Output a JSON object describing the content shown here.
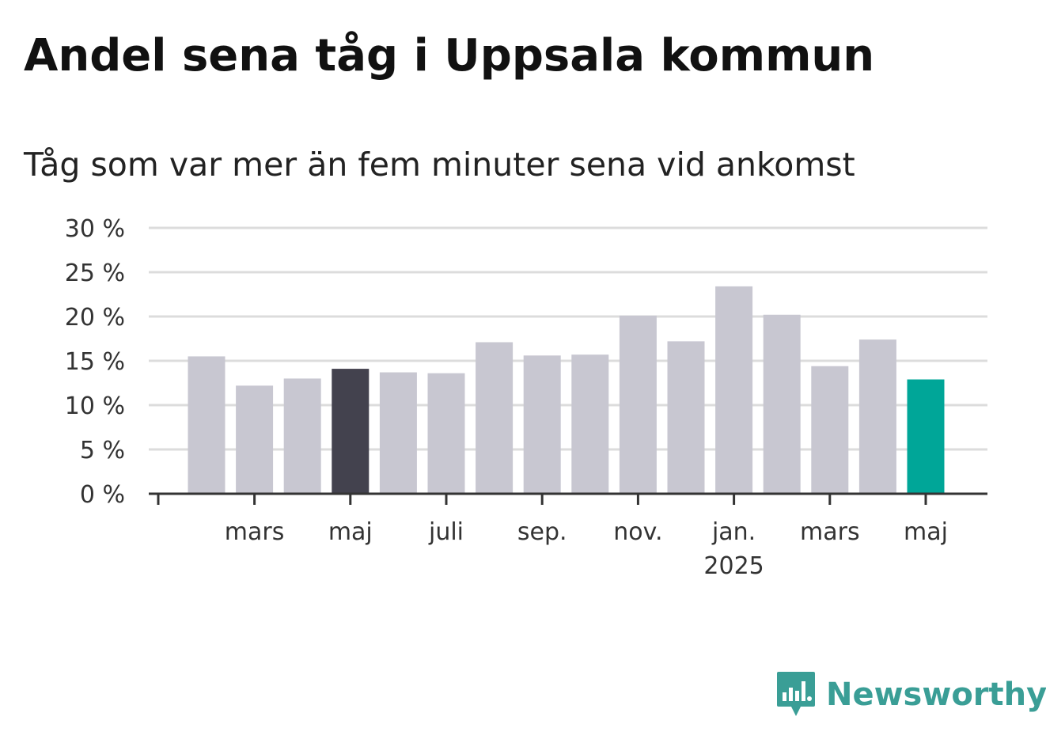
{
  "title": "Andel sena tåg i Uppsala kommun",
  "subtitle": "Tåg som var mer än fem minuter sena vid ankomst",
  "brand": {
    "name": "Newsworthy",
    "icon": "newsworthy-logo-icon"
  },
  "colors": {
    "bar_default": "#c8c7d1",
    "bar_highlight_dark": "#43424e",
    "bar_highlight_latest": "#00a698",
    "axis": "#333333",
    "grid": "#dcdcdc",
    "brand": "#3a9e96"
  },
  "chart_data": {
    "type": "bar",
    "title": "Andel sena tåg i Uppsala kommun",
    "subtitle": "Tåg som var mer än fem minuter sena vid ankomst",
    "xlabel": "",
    "ylabel": "",
    "ylim": [
      0,
      30
    ],
    "yticks": [
      "0 %",
      "5 %",
      "10 %",
      "15 %",
      "20 %",
      "25 %",
      "30 %"
    ],
    "grid": true,
    "categories": [
      "2024-02",
      "2024-03",
      "2024-04",
      "2024-05",
      "2024-06",
      "2024-07",
      "2024-08",
      "2024-09",
      "2024-10",
      "2024-11",
      "2024-12",
      "2025-01",
      "2025-02",
      "2025-03",
      "2025-04",
      "2025-05"
    ],
    "values": [
      15.5,
      12.2,
      13.0,
      14.1,
      13.7,
      13.6,
      17.1,
      15.6,
      15.7,
      20.1,
      17.2,
      23.4,
      20.2,
      14.4,
      17.4,
      12.9
    ],
    "highlight": {
      "2024-05": "dark",
      "2025-05": "latest"
    },
    "xtick_labels": [
      {
        "category": "2024-03",
        "label": "mars"
      },
      {
        "category": "2024-05",
        "label": "maj"
      },
      {
        "category": "2024-07",
        "label": "juli"
      },
      {
        "category": "2024-09",
        "label": "sep."
      },
      {
        "category": "2024-11",
        "label": "nov."
      },
      {
        "category": "2025-01",
        "label": "jan.",
        "year": "2025"
      },
      {
        "category": "2025-03",
        "label": "mars"
      },
      {
        "category": "2025-05",
        "label": "maj"
      }
    ]
  }
}
